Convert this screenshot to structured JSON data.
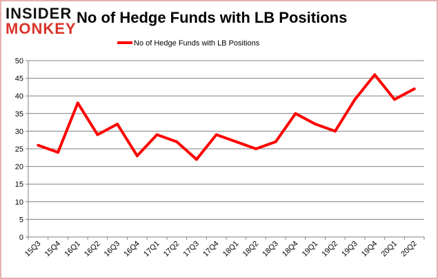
{
  "logo": {
    "line1": "INSIDER",
    "line2": "MONKEY"
  },
  "chart_data": {
    "type": "line",
    "title": "No of Hedge Funds with LB Positions",
    "xlabel": "",
    "ylabel": "",
    "categories": [
      "15Q3",
      "15Q4",
      "16Q1",
      "16Q2",
      "16Q3",
      "16Q4",
      "17Q1",
      "17Q2",
      "17Q3",
      "17Q4",
      "18Q1",
      "18Q2",
      "18Q3",
      "18Q4",
      "19Q1",
      "19Q2",
      "19Q3",
      "19Q4",
      "20Q1",
      "20Q2"
    ],
    "series": [
      {
        "name": "No of Hedge Funds with LB Positions",
        "color": "#ff0000",
        "values": [
          26,
          24,
          38,
          29,
          32,
          23,
          29,
          27,
          22,
          29,
          27,
          25,
          27,
          35,
          32,
          30,
          39,
          46,
          39,
          42
        ]
      }
    ],
    "ylim": [
      0,
      50
    ],
    "yticks": [
      0,
      5,
      10,
      15,
      20,
      25,
      30,
      35,
      40,
      45,
      50
    ],
    "grid": true,
    "legend": "top-center"
  },
  "colors": {
    "frame": "#e0a0a0",
    "grid": "#808080",
    "logo_dark": "#111111",
    "logo_red": "#d9342b"
  }
}
